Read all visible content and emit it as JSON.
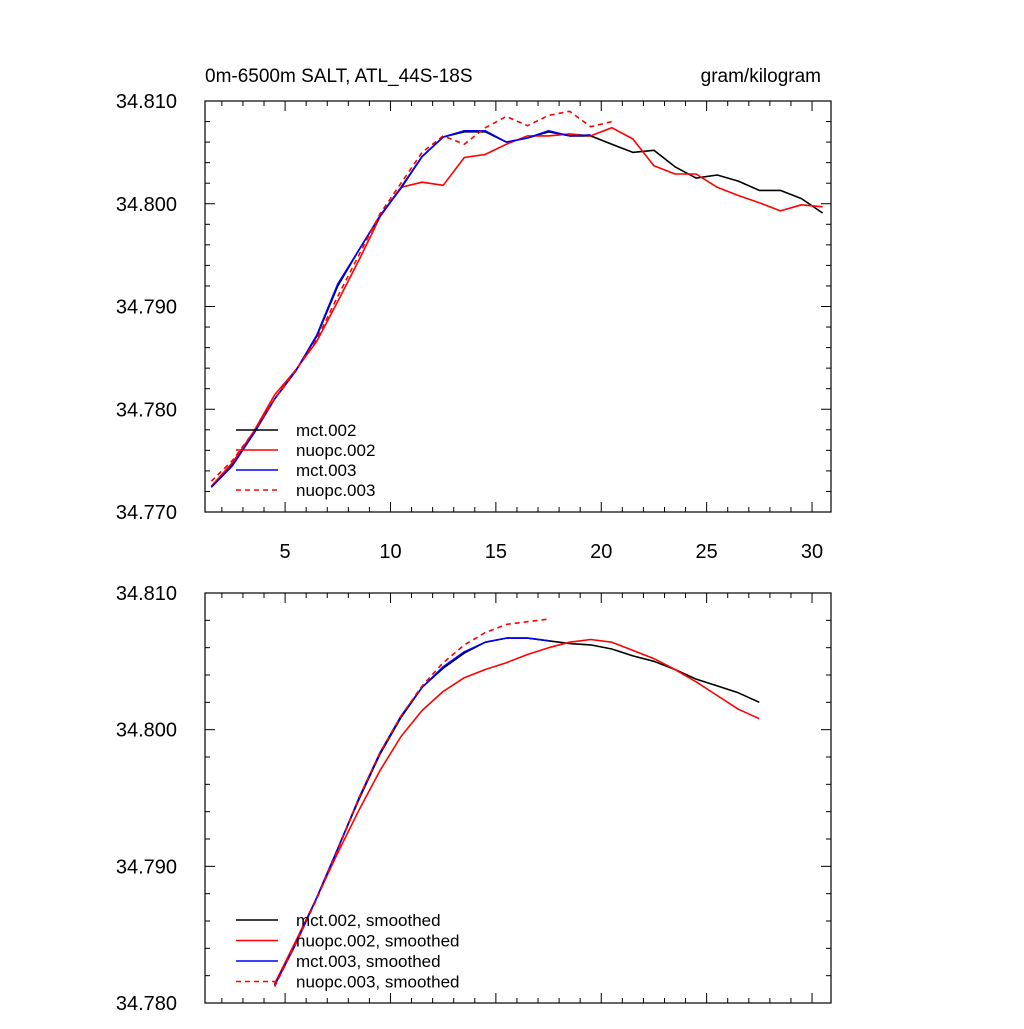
{
  "chart_data": [
    {
      "type": "line",
      "title": "0m-6500m SALT, ATL_44S-18S",
      "units": "gram/kilogram",
      "xlabel": "",
      "ylabel": "",
      "xlim": [
        1.2,
        30.9
      ],
      "ylim": [
        34.77,
        34.81
      ],
      "xticks": [
        5,
        10,
        15,
        20,
        25,
        30
      ],
      "yticks": [
        34.77,
        34.78,
        34.79,
        34.8,
        34.81
      ],
      "ytick_labels": [
        "34.770",
        "34.780",
        "34.790",
        "34.800",
        "34.810"
      ],
      "legend_position": "bottom-left",
      "series": [
        {
          "name": "mct.002",
          "color": "#000000",
          "dash": "solid",
          "x": [
            1.5,
            2.5,
            3.5,
            4.5,
            5.5,
            6.5,
            7.5,
            8.5,
            9.5,
            10.5,
            11.5,
            12.5,
            13.5,
            14.5,
            15.5,
            16.5,
            17.5,
            18.5,
            19.5,
            20.5,
            21.5,
            22.5,
            23.5,
            24.5,
            25.5,
            26.5,
            27.5,
            28.5,
            29.5,
            30.5
          ],
          "y": [
            34.7725,
            34.7746,
            34.7776,
            34.781,
            34.7837,
            34.7871,
            34.792,
            34.7955,
            34.7988,
            34.8016,
            34.8046,
            34.8065,
            34.807,
            34.807,
            34.806,
            34.8064,
            34.807,
            34.8066,
            34.8066,
            34.8058,
            34.805,
            34.8052,
            34.8036,
            34.8025,
            34.8028,
            34.8022,
            34.8013,
            34.8013,
            34.8005,
            34.7991
          ]
        },
        {
          "name": "nuopc.002",
          "color": "#ff0000",
          "dash": "solid",
          "x": [
            1.5,
            2.5,
            3.5,
            4.5,
            5.5,
            6.5,
            7.5,
            8.5,
            9.5,
            10.5,
            11.5,
            12.5,
            13.5,
            14.5,
            15.5,
            16.5,
            17.5,
            18.5,
            19.5,
            20.5,
            21.5,
            22.5,
            23.5,
            24.5,
            25.5,
            26.5,
            27.5,
            28.5,
            29.5,
            30.5
          ],
          "y": [
            34.7725,
            34.7748,
            34.7778,
            34.7814,
            34.7838,
            34.7866,
            34.7905,
            34.7945,
            34.7987,
            34.8016,
            34.8021,
            34.8018,
            34.8045,
            34.8048,
            34.8058,
            34.8066,
            34.8066,
            34.8068,
            34.8066,
            34.8074,
            34.8063,
            34.8037,
            34.8029,
            34.8029,
            34.8016,
            34.8008,
            34.8001,
            34.7993,
            34.7999,
            34.7997
          ]
        },
        {
          "name": "mct.003",
          "color": "#0000ff",
          "dash": "solid",
          "x": [
            1.5,
            2.5,
            3.5,
            4.5,
            5.5,
            6.5,
            7.5,
            8.5,
            9.5,
            10.5,
            11.5,
            12.5,
            13.5,
            14.5,
            15.5,
            16.5,
            17.5,
            18.5,
            19.5
          ],
          "y": [
            34.7724,
            34.7745,
            34.7776,
            34.781,
            34.7837,
            34.7872,
            34.7922,
            34.7955,
            34.7988,
            34.8015,
            34.8046,
            34.8065,
            34.8071,
            34.8071,
            34.806,
            34.8064,
            34.8071,
            34.8066,
            34.8067
          ]
        },
        {
          "name": "nuopc.003",
          "color": "#ff0000",
          "dash": "dashed",
          "x": [
            1.5,
            2.5,
            3.5,
            4.5,
            5.5,
            6.5,
            7.5,
            8.5,
            9.5,
            10.5,
            11.5,
            12.5,
            13.5,
            14.5,
            15.5,
            16.5,
            17.5,
            18.5,
            19.5,
            20.5
          ],
          "y": [
            34.773,
            34.775,
            34.7778,
            34.781,
            34.7838,
            34.7868,
            34.791,
            34.795,
            34.799,
            34.802,
            34.805,
            34.8066,
            34.8058,
            34.8074,
            34.8085,
            34.8076,
            34.8086,
            34.809,
            34.8075,
            34.808
          ]
        }
      ]
    },
    {
      "type": "line",
      "title": "",
      "xlabel": "",
      "ylabel": "",
      "xlim": [
        1.2,
        30.9
      ],
      "ylim": [
        34.78,
        34.81
      ],
      "xticks": [
        5,
        10,
        15,
        20,
        25,
        30
      ],
      "yticks": [
        34.78,
        34.79,
        34.8,
        34.81
      ],
      "ytick_labels": [
        "34.780",
        "34.790",
        "34.800",
        "34.810"
      ],
      "legend_position": "bottom-left",
      "series": [
        {
          "name": "mct.002, smoothed",
          "color": "#000000",
          "dash": "solid",
          "x": [
            4.5,
            5.5,
            6.5,
            7.5,
            8.5,
            9.5,
            10.5,
            11.5,
            12.5,
            13.5,
            14.5,
            15.5,
            16.5,
            17.5,
            18.5,
            19.5,
            20.5,
            21.5,
            22.5,
            23.5,
            24.5,
            25.5,
            26.5,
            27.5
          ],
          "y": [
            34.7813,
            34.7843,
            34.7877,
            34.7913,
            34.7949,
            34.7982,
            34.8009,
            34.8031,
            34.8045,
            34.8056,
            34.8064,
            34.8067,
            34.8067,
            34.8065,
            34.8063,
            34.8062,
            34.8059,
            34.8054,
            34.805,
            34.8044,
            34.8037,
            34.8032,
            34.8027,
            34.802
          ]
        },
        {
          "name": "nuopc.002, smoothed",
          "color": "#ff0000",
          "dash": "solid",
          "x": [
            4.5,
            5.5,
            6.5,
            7.5,
            8.5,
            9.5,
            10.5,
            11.5,
            12.5,
            13.5,
            14.5,
            15.5,
            16.5,
            17.5,
            18.5,
            19.5,
            20.5,
            21.5,
            22.5,
            23.5,
            24.5,
            25.5,
            26.5,
            27.5
          ],
          "y": [
            34.7814,
            34.7845,
            34.7877,
            34.791,
            34.7941,
            34.797,
            34.7995,
            34.8014,
            34.8028,
            34.8038,
            34.8044,
            34.8049,
            34.8055,
            34.806,
            34.8064,
            34.8066,
            34.8064,
            34.8058,
            34.8052,
            34.8044,
            34.8035,
            34.8025,
            34.8015,
            34.8008
          ]
        },
        {
          "name": "mct.003, smoothed",
          "color": "#0000ff",
          "dash": "solid",
          "x": [
            4.5,
            5.5,
            6.5,
            7.5,
            8.5,
            9.5,
            10.5,
            11.5,
            12.5,
            13.5,
            14.5,
            15.5,
            16.5,
            17.5
          ],
          "y": [
            34.7813,
            34.7843,
            34.7877,
            34.7913,
            34.795,
            34.7983,
            34.801,
            34.8031,
            34.8046,
            34.8057,
            34.8064,
            34.8067,
            34.8067,
            34.8065
          ]
        },
        {
          "name": "nuopc.003, smoothed",
          "color": "#ff0000",
          "dash": "dashed",
          "x": [
            4.5,
            5.5,
            6.5,
            7.5,
            8.5,
            9.5,
            10.5,
            11.5,
            12.5,
            13.5,
            14.5,
            15.5,
            16.5,
            17.5
          ],
          "y": [
            34.7812,
            34.7843,
            34.7876,
            34.7912,
            34.795,
            34.7983,
            34.801,
            34.8032,
            34.8049,
            34.8062,
            34.8071,
            34.8077,
            34.8079,
            34.8081
          ]
        }
      ]
    }
  ]
}
